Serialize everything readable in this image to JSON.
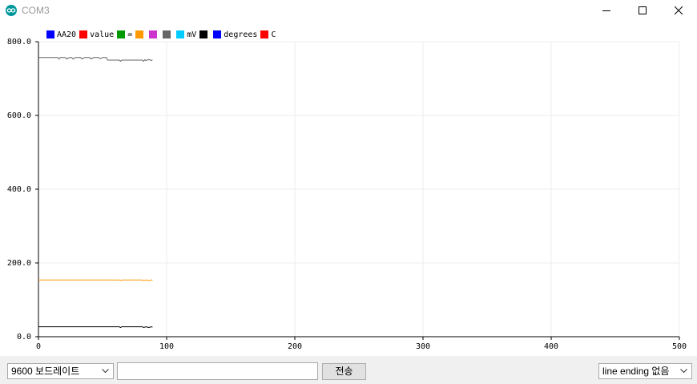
{
  "window": {
    "title": "COM3",
    "icon": "arduino-infinity-icon",
    "controls": [
      "minimize-icon",
      "maximize-icon",
      "close-icon"
    ]
  },
  "legend": [
    {
      "label": "AA20",
      "color": "#0000ff"
    },
    {
      "label": "value",
      "color": "#ff0000"
    },
    {
      "label": "=",
      "color": "#009900"
    },
    {
      "label": "",
      "color": "#ff9900"
    },
    {
      "label": "",
      "color": "#cc33cc"
    },
    {
      "label": "",
      "color": "#666666"
    },
    {
      "label": "mV",
      "color": "#00ccff"
    },
    {
      "label": "",
      "color": "#000000"
    },
    {
      "label": "degrees",
      "color": "#0000ff"
    },
    {
      "label": "C",
      "color": "#ff0000"
    }
  ],
  "chart_data": {
    "type": "line",
    "xlim": [
      0,
      500
    ],
    "ylim": [
      0,
      800
    ],
    "x_ticks": [
      "0",
      "100",
      "200",
      "300",
      "400",
      "500"
    ],
    "y_ticks": [
      "0.0",
      "200.0",
      "400.0",
      "600.0",
      "800.0"
    ],
    "grid": true,
    "legend_position": "top-left",
    "series": [
      {
        "color": "#666666",
        "points": [
          [
            0,
            757
          ],
          [
            15,
            757
          ],
          [
            16,
            753
          ],
          [
            17,
            757
          ],
          [
            21,
            757
          ],
          [
            22,
            753
          ],
          [
            24,
            757
          ],
          [
            26,
            757
          ],
          [
            27,
            753
          ],
          [
            29,
            757
          ],
          [
            33,
            757
          ],
          [
            34,
            753
          ],
          [
            36,
            757
          ],
          [
            40,
            757
          ],
          [
            41,
            753
          ],
          [
            43,
            757
          ],
          [
            47,
            757
          ],
          [
            48,
            754
          ],
          [
            50,
            757
          ],
          [
            53,
            757
          ],
          [
            54,
            750
          ],
          [
            63,
            750
          ],
          [
            64,
            747
          ],
          [
            65,
            750
          ],
          [
            81,
            750
          ],
          [
            82,
            747
          ],
          [
            83,
            751
          ],
          [
            84,
            749
          ],
          [
            86,
            752
          ],
          [
            88,
            749
          ],
          [
            89,
            751
          ]
        ]
      },
      {
        "color": "#ff9900",
        "points": [
          [
            0,
            154
          ],
          [
            63,
            154
          ],
          [
            64,
            152
          ],
          [
            65,
            154
          ],
          [
            81,
            154
          ],
          [
            82,
            152
          ],
          [
            84,
            154
          ],
          [
            86,
            152
          ],
          [
            88,
            154
          ],
          [
            89,
            153
          ]
        ]
      },
      {
        "color": "#000000",
        "points": [
          [
            0,
            27
          ],
          [
            63,
            27
          ],
          [
            64,
            25
          ],
          [
            65,
            27
          ],
          [
            81,
            27
          ],
          [
            82,
            25
          ],
          [
            84,
            27
          ],
          [
            86,
            25
          ],
          [
            88,
            27
          ],
          [
            89,
            26
          ]
        ]
      }
    ]
  },
  "controls": {
    "baud_rate": "9600 보드레이트",
    "input_value": "",
    "send_label": "전송",
    "line_ending": "line ending 없음"
  }
}
